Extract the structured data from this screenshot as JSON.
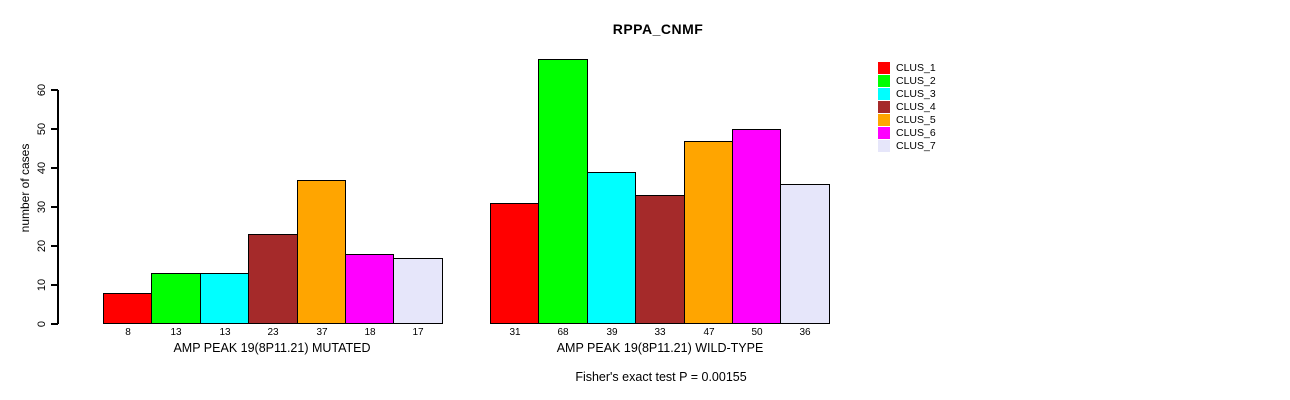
{
  "title": "RPPA_CNMF",
  "ylabel": "number of cases",
  "footer": "Fisher's exact test P = 0.00155",
  "legend": {
    "items": [
      {
        "label": "CLUS_1",
        "color": "#FF0000"
      },
      {
        "label": "CLUS_2",
        "color": "#00FF00"
      },
      {
        "label": "CLUS_3",
        "color": "#00FFFF"
      },
      {
        "label": "CLUS_4",
        "color": "#A52A2A"
      },
      {
        "label": "CLUS_5",
        "color": "#FFA500"
      },
      {
        "label": "CLUS_6",
        "color": "#FF00FF"
      },
      {
        "label": "CLUS_7",
        "color": "#E6E6FA"
      }
    ]
  },
  "chart_data": {
    "type": "bar",
    "title": "RPPA_CNMF",
    "xlabel": "",
    "ylabel": "number of cases",
    "yticks": [
      0,
      10,
      20,
      30,
      40,
      50,
      60
    ],
    "ylim": [
      0,
      68
    ],
    "grid": false,
    "legend_position": "right",
    "show_value_labels": true,
    "legend_labels": [
      "CLUS_1",
      "CLUS_2",
      "CLUS_3",
      "CLUS_4",
      "CLUS_5",
      "CLUS_6",
      "CLUS_7"
    ],
    "series_colors": [
      "#FF0000",
      "#00FF00",
      "#00FFFF",
      "#A52A2A",
      "#FFA500",
      "#FF00FF",
      "#E6E6FA"
    ],
    "groups": [
      {
        "label": "AMP PEAK 19(8P11.21) MUTATED",
        "values": [
          8,
          13,
          13,
          23,
          37,
          18,
          17
        ]
      },
      {
        "label": "AMP PEAK 19(8P11.21) WILD-TYPE",
        "values": [
          31,
          68,
          39,
          33,
          47,
          50,
          36
        ]
      }
    ],
    "annotation": "Fisher's exact test P = 0.00155"
  }
}
